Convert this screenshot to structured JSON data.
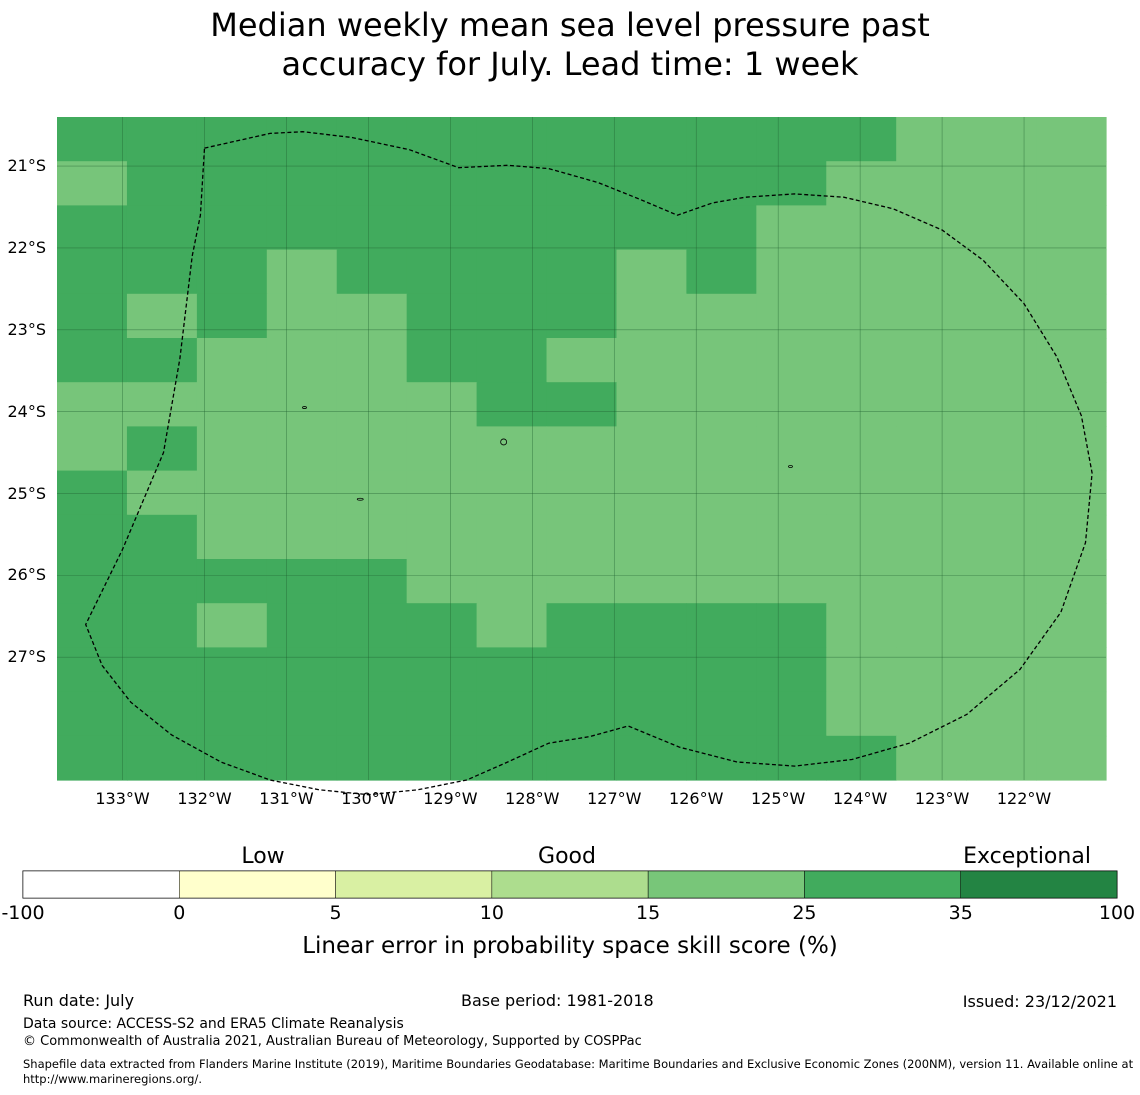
{
  "title_line1": "Median weekly mean sea level pressure past",
  "title_line2": "accuracy for July. Lead time: 1 week",
  "map": {
    "lon_range": [
      -133.8,
      -121.0
    ],
    "lat_range": [
      -28.5,
      -20.4
    ],
    "lat_ticks": [
      {
        "value": -21,
        "label": "21°S"
      },
      {
        "value": -22,
        "label": "22°S"
      },
      {
        "value": -23,
        "label": "23°S"
      },
      {
        "value": -24,
        "label": "24°S"
      },
      {
        "value": -25,
        "label": "25°S"
      },
      {
        "value": -26,
        "label": "26°S"
      },
      {
        "value": -27,
        "label": "27°S"
      }
    ],
    "lon_ticks": [
      {
        "value": -133,
        "label": "133°W"
      },
      {
        "value": -132,
        "label": "132°W"
      },
      {
        "value": -131,
        "label": "131°W"
      },
      {
        "value": -130,
        "label": "130°W"
      },
      {
        "value": -129,
        "label": "129°W"
      },
      {
        "value": -128,
        "label": "128°W"
      },
      {
        "value": -127,
        "label": "127°W"
      },
      {
        "value": -126,
        "label": "126°W"
      },
      {
        "value": -125,
        "label": "125°W"
      },
      {
        "value": -124,
        "label": "124°W"
      },
      {
        "value": -123,
        "label": "123°W"
      },
      {
        "value": -122,
        "label": "122°W"
      }
    ],
    "category_colors": {
      "light": "#77c57a",
      "medium": "#41ab5d"
    },
    "grid_colors_rows_north_to_south": [
      "MMMMMMMMMMMMLLL",
      "LMMMMMMMMMMLLLL",
      "MMMMMMMMMMLLLLL",
      "MMMLMMMMLMLLLLL",
      "MLMLLMMMLLLLLLL",
      "MMLLLMMLLLLLLLL",
      "LLLLLLMMLLLLLLL",
      "LMLLLLLLLLLLLLL",
      "MLLLLLLLLLLLLLL",
      "MMLLLLLLLLLLLLL",
      "MMMMMLLLLLLLLLL",
      "MMLMMMLMMMMLLLL",
      "MMMMMMMMMMMLLLL",
      "MMMMMMMMMMMLLLL",
      "MMMMMMMMMMMMLLL"
    ],
    "eez_boundary_lonlat": [
      [
        -132.0,
        -20.78
      ],
      [
        -131.2,
        -20.6
      ],
      [
        -130.8,
        -20.58
      ],
      [
        -130.2,
        -20.65
      ],
      [
        -129.5,
        -20.8
      ],
      [
        -128.9,
        -21.02
      ],
      [
        -128.3,
        -20.99
      ],
      [
        -127.8,
        -21.03
      ],
      [
        -127.2,
        -21.2
      ],
      [
        -126.7,
        -21.4
      ],
      [
        -126.23,
        -21.6
      ],
      [
        -125.8,
        -21.45
      ],
      [
        -125.4,
        -21.38
      ],
      [
        -124.8,
        -21.34
      ],
      [
        -124.2,
        -21.38
      ],
      [
        -123.6,
        -21.52
      ],
      [
        -123.0,
        -21.78
      ],
      [
        -122.5,
        -22.15
      ],
      [
        -122.0,
        -22.68
      ],
      [
        -121.6,
        -23.33
      ],
      [
        -121.3,
        -24.05
      ],
      [
        -121.17,
        -24.75
      ],
      [
        -121.25,
        -25.6
      ],
      [
        -121.55,
        -26.45
      ],
      [
        -122.05,
        -27.15
      ],
      [
        -122.7,
        -27.7
      ],
      [
        -123.4,
        -28.05
      ],
      [
        -124.1,
        -28.25
      ],
      [
        -124.8,
        -28.33
      ],
      [
        -125.5,
        -28.28
      ],
      [
        -126.2,
        -28.1
      ],
      [
        -126.83,
        -27.84
      ],
      [
        -127.3,
        -27.97
      ],
      [
        -127.8,
        -28.05
      ],
      [
        -128.3,
        -28.28
      ],
      [
        -128.8,
        -28.5
      ],
      [
        -129.4,
        -28.62
      ],
      [
        -130.0,
        -28.68
      ],
      [
        -130.6,
        -28.62
      ],
      [
        -131.2,
        -28.5
      ],
      [
        -131.8,
        -28.28
      ],
      [
        -132.4,
        -27.95
      ],
      [
        -132.9,
        -27.55
      ],
      [
        -133.25,
        -27.1
      ],
      [
        -133.45,
        -26.6
      ],
      [
        -133.0,
        -25.68
      ],
      [
        -132.5,
        -24.5
      ],
      [
        -132.3,
        -23.35
      ],
      [
        -132.15,
        -22.1
      ],
      [
        -132.05,
        -21.6
      ],
      [
        -132.0,
        -20.78
      ]
    ]
  },
  "legend": {
    "categories": {
      "low": "Low",
      "good": "Good",
      "exceptional": "Exceptional"
    },
    "bins": [
      {
        "from": -100,
        "to": 0,
        "color": "#ffffff"
      },
      {
        "from": 0,
        "to": 5,
        "color": "#ffffcc"
      },
      {
        "from": 5,
        "to": 10,
        "color": "#d9f0a3"
      },
      {
        "from": 10,
        "to": 15,
        "color": "#addd8e"
      },
      {
        "from": 15,
        "to": 25,
        "color": "#78c679"
      },
      {
        "from": 25,
        "to": 35,
        "color": "#41ab5d"
      },
      {
        "from": 35,
        "to": 100,
        "color": "#238443"
      }
    ],
    "ticks": [
      "-100",
      "0",
      "5",
      "10",
      "15",
      "25",
      "35",
      "100"
    ],
    "label": "Linear error in probability space skill score (%)"
  },
  "footer": {
    "run_date": "Run date: July",
    "base_period": "Base period: 1981-2018",
    "issued": "Issued: 23/12/2021",
    "data_source": "Data source: ACCESS-S2 and ERA5 Climate Reanalysis",
    "copyright": "© Commonwealth of Australia 2021, Australian Bureau of Meteorology, Supported by COSPPac",
    "shapefile": "Shapefile data extracted from Flanders Marine Institute (2019), Maritime Boundaries Geodatabase: Maritime Boundaries and Exclusive Economic Zones (200NM), version 11. Available online at http://www.marineregions.org/."
  }
}
